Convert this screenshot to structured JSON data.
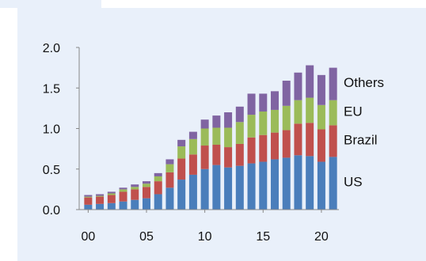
{
  "chart_data": {
    "type": "bar",
    "stacked": true,
    "title": "",
    "xlabel": "",
    "ylabel": "",
    "categories": [
      "00",
      "01",
      "02",
      "03",
      "04",
      "05",
      "06",
      "07",
      "08",
      "09",
      "10",
      "11",
      "12",
      "13",
      "14",
      "15",
      "16",
      "17",
      "18",
      "19",
      "20",
      "21"
    ],
    "x_tick_labels": [
      "00",
      "05",
      "10",
      "15",
      "20"
    ],
    "y_tick_labels": [
      "0.0",
      "0.5",
      "1.0",
      "1.5",
      "2.0"
    ],
    "ylim": [
      0,
      2.0
    ],
    "grid": false,
    "series": [
      {
        "name": "US",
        "color": "#4a7ebb",
        "values": [
          0.06,
          0.07,
          0.08,
          0.1,
          0.12,
          0.14,
          0.19,
          0.27,
          0.37,
          0.43,
          0.5,
          0.55,
          0.52,
          0.54,
          0.57,
          0.59,
          0.62,
          0.64,
          0.67,
          0.66,
          0.59,
          0.65
        ]
      },
      {
        "name": "Brazil",
        "color": "#c0504d",
        "values": [
          0.09,
          0.09,
          0.1,
          0.12,
          0.13,
          0.14,
          0.16,
          0.19,
          0.26,
          0.25,
          0.29,
          0.25,
          0.25,
          0.27,
          0.32,
          0.33,
          0.33,
          0.34,
          0.39,
          0.41,
          0.4,
          0.39
        ]
      },
      {
        "name": "EU",
        "color": "#9bbb59",
        "values": [
          0.01,
          0.01,
          0.02,
          0.03,
          0.03,
          0.04,
          0.06,
          0.1,
          0.15,
          0.19,
          0.21,
          0.21,
          0.24,
          0.27,
          0.28,
          0.29,
          0.28,
          0.3,
          0.29,
          0.31,
          0.3,
          0.31
        ]
      },
      {
        "name": "Others",
        "color": "#8064a2",
        "values": [
          0.02,
          0.02,
          0.02,
          0.02,
          0.03,
          0.03,
          0.04,
          0.06,
          0.08,
          0.09,
          0.11,
          0.15,
          0.19,
          0.19,
          0.26,
          0.22,
          0.23,
          0.31,
          0.34,
          0.4,
          0.37,
          0.4
        ]
      }
    ],
    "legend_labels": [
      "Others",
      "EU",
      "Brazil",
      "US"
    ],
    "legend_position": "right"
  }
}
